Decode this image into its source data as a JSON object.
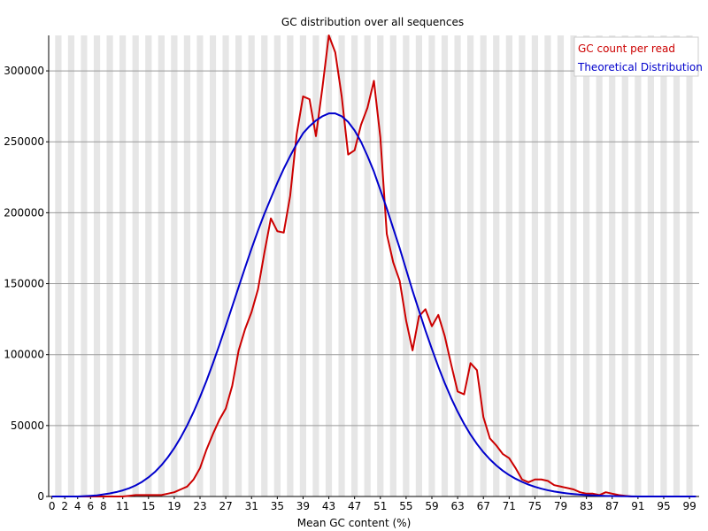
{
  "chart_data": {
    "type": "line",
    "title": "GC distribution over all sequences",
    "xlabel": "Mean GC content (%)",
    "ylabel": "",
    "xlim": [
      0,
      100
    ],
    "ylim": [
      0,
      325000
    ],
    "grid": true,
    "legend_position": "top-right",
    "x_ticks": [
      0,
      2,
      4,
      6,
      8,
      11,
      15,
      19,
      23,
      27,
      31,
      35,
      39,
      43,
      47,
      51,
      55,
      59,
      63,
      67,
      71,
      75,
      79,
      83,
      87,
      91,
      95,
      99
    ],
    "x_tick_labels": [
      "0",
      "2",
      "4",
      "6",
      "8",
      "11",
      "15",
      "19",
      "23",
      "27",
      "31",
      "35",
      "39",
      "43",
      "47",
      "51",
      "55",
      "59",
      "63",
      "67",
      "71",
      "75",
      "79",
      "83",
      "87",
      "91",
      "95",
      "99"
    ],
    "y_ticks": [
      0,
      50000,
      100000,
      150000,
      200000,
      250000,
      300000
    ],
    "y_tick_labels": [
      "0",
      "50000",
      "100000",
      "150000",
      "200000",
      "250000",
      "300000"
    ],
    "series": [
      {
        "name": "GC count per read",
        "color": "#cc0000",
        "x": [
          0,
          1,
          2,
          3,
          4,
          5,
          6,
          7,
          8,
          9,
          10,
          11,
          12,
          13,
          14,
          15,
          16,
          17,
          18,
          19,
          20,
          21,
          22,
          23,
          24,
          25,
          26,
          27,
          28,
          29,
          30,
          31,
          32,
          33,
          34,
          35,
          36,
          37,
          38,
          39,
          40,
          41,
          42,
          43,
          44,
          45,
          46,
          47,
          48,
          49,
          50,
          51,
          52,
          53,
          54,
          55,
          56,
          57,
          58,
          59,
          60,
          61,
          62,
          63,
          64,
          65,
          66,
          67,
          68,
          69,
          70,
          71,
          72,
          73,
          74,
          75,
          76,
          77,
          78,
          79,
          80,
          81,
          82,
          83,
          84,
          85,
          86,
          87,
          88,
          89,
          90,
          91,
          92,
          93,
          94,
          95,
          96,
          97,
          98,
          99,
          100
        ],
        "values": [
          0,
          0,
          0,
          0,
          0,
          0,
          0,
          0,
          0,
          0,
          0,
          0,
          500,
          1000,
          1000,
          1000,
          1000,
          1000,
          2000,
          3000,
          5000,
          7000,
          12000,
          20000,
          33000,
          44000,
          54000,
          62000,
          78000,
          103000,
          118000,
          130000,
          146000,
          172000,
          196000,
          187000,
          186000,
          212000,
          255000,
          282000,
          280000,
          254000,
          288000,
          325000,
          313000,
          282000,
          241000,
          244000,
          262000,
          274000,
          293000,
          253000,
          185000,
          165000,
          152000,
          124000,
          103000,
          127000,
          132000,
          120000,
          128000,
          113000,
          93000,
          74000,
          72000,
          94000,
          89000,
          56000,
          41000,
          36000,
          30000,
          27000,
          20000,
          12000,
          10000,
          12000,
          12000,
          11000,
          8000,
          7000,
          6000,
          5000,
          3000,
          2000,
          2000,
          1000,
          3000,
          2000,
          1000,
          500,
          0,
          0,
          0,
          0,
          0,
          0,
          0,
          0,
          0,
          0,
          0
        ]
      },
      {
        "name": "Theoretical Distribution",
        "color": "#0000cc",
        "x": [
          0,
          1,
          2,
          3,
          4,
          5,
          6,
          7,
          8,
          9,
          10,
          11,
          12,
          13,
          14,
          15,
          16,
          17,
          18,
          19,
          20,
          21,
          22,
          23,
          24,
          25,
          26,
          27,
          28,
          29,
          30,
          31,
          32,
          33,
          34,
          35,
          36,
          37,
          38,
          39,
          40,
          41,
          42,
          43,
          44,
          45,
          46,
          47,
          48,
          49,
          50,
          51,
          52,
          53,
          54,
          55,
          56,
          57,
          58,
          59,
          60,
          61,
          62,
          63,
          64,
          65,
          66,
          67,
          68,
          69,
          70,
          71,
          72,
          73,
          74,
          75,
          76,
          77,
          78,
          79,
          80,
          81,
          82,
          83,
          84,
          85,
          86,
          87,
          88,
          89,
          90,
          91,
          92,
          93,
          94,
          95,
          96,
          97,
          98,
          99,
          100
        ],
        "values": [
          0,
          0,
          0,
          0,
          0,
          200,
          500,
          800,
          1500,
          2200,
          3100,
          4300,
          5800,
          7800,
          10300,
          13500,
          17300,
          22000,
          27600,
          34100,
          41600,
          50100,
          59600,
          70100,
          81500,
          93800,
          106700,
          120200,
          133900,
          147700,
          161400,
          174700,
          187400,
          199300,
          210200,
          221000,
          231000,
          240000,
          248500,
          256000,
          261000,
          265000,
          268000,
          270000,
          270000,
          268000,
          264000,
          258000,
          250000,
          240000,
          229000,
          216000,
          203000,
          189000,
          175000,
          160000,
          145000,
          131000,
          117000,
          104000,
          91500,
          79900,
          69300,
          59800,
          51200,
          43600,
          37000,
          31200,
          26200,
          21900,
          18200,
          15100,
          12500,
          10300,
          8400,
          6800,
          5500,
          4400,
          3500,
          2800,
          2200,
          1700,
          1300,
          1000,
          800,
          600,
          400,
          300,
          200,
          150,
          100,
          0,
          0,
          0,
          0,
          0,
          0,
          0,
          0,
          0,
          0
        ]
      }
    ]
  }
}
